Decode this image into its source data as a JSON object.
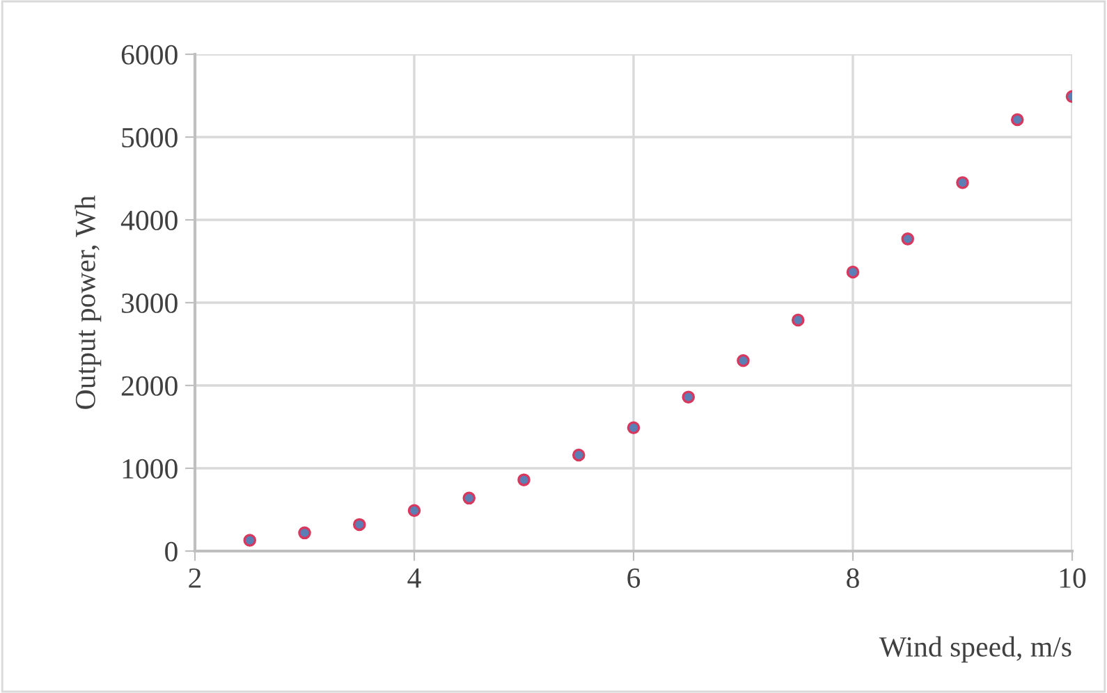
{
  "chart_data": {
    "type": "scatter",
    "xlabel": "Wind speed, m/s",
    "ylabel": "Output power, Wh",
    "x": [
      2.5,
      3,
      3.5,
      4,
      4.5,
      5,
      5.5,
      6,
      6.5,
      7,
      7.5,
      8,
      8.5,
      9,
      9.5,
      10
    ],
    "series": [
      {
        "color": "#5b7fb5",
        "values": [
          130,
          220,
          320,
          490,
          640,
          860,
          1160,
          1490,
          1860,
          2300,
          2790,
          3370,
          3770,
          4450,
          5210,
          5490
        ]
      }
    ],
    "xlim": [
      2,
      10
    ],
    "ylim": [
      0,
      6000
    ],
    "xticks": [
      2,
      4,
      6,
      8,
      10
    ],
    "yticks": [
      0,
      1000,
      2000,
      3000,
      4000,
      5000,
      6000
    ],
    "grid": true,
    "marker": "circle"
  }
}
